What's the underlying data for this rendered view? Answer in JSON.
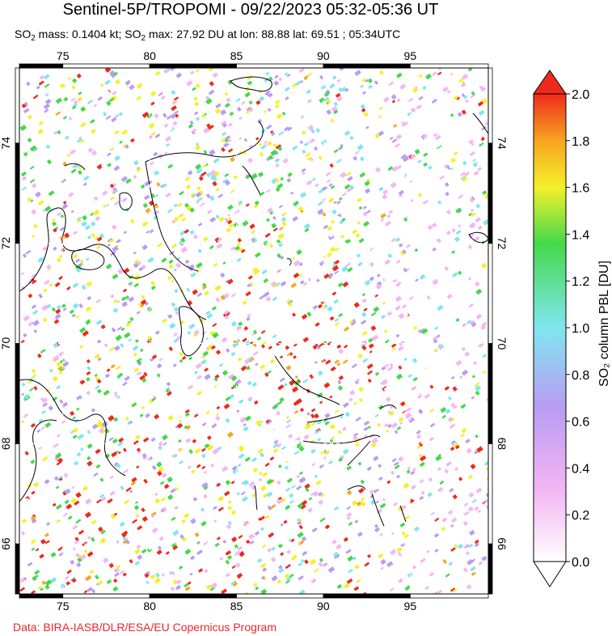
{
  "header": {
    "title": "Sentinel-5P/TROPOMI - 09/22/2023 05:32-05:36 UT",
    "so2_mass_prefix": "SO",
    "so2_mass_text": " mass: 0.1404 kt; SO",
    "so2_max_text": " max: 27.92 DU at lon: 88.88 lat: 69.51 ; 05:34UTC",
    "subscript": "2"
  },
  "map": {
    "lon_range": [
      72.5,
      99.5
    ],
    "lat_range": [
      65.0,
      75.5
    ],
    "lon_ticks": [
      "75",
      "80",
      "85",
      "90",
      "95"
    ],
    "lat_ticks": [
      "66",
      "68",
      "70",
      "72",
      "74"
    ],
    "max_marker": {
      "lon": 88.88,
      "lat": 69.51
    }
  },
  "colorbar": {
    "title": "SO₂ column PBL [DU]",
    "ticks": [
      "0.0",
      "0.2",
      "0.4",
      "0.6",
      "0.8",
      "1.0",
      "1.2",
      "1.4",
      "1.6",
      "1.8",
      "2.0"
    ],
    "min": 0.0,
    "max": 2.0,
    "colors": {
      "low": "#ffffff",
      "pink": "#f4b6f4",
      "violet": "#b99cf2",
      "lightblue": "#80e6f0",
      "green": "#44d94a",
      "yellow": "#f5f02a",
      "orange": "#f7a521",
      "red": "#ee2a1c"
    }
  },
  "footer": {
    "credit": "Data: BIRA-IASB/DLR/ESA/EU Copernicus Program"
  }
}
